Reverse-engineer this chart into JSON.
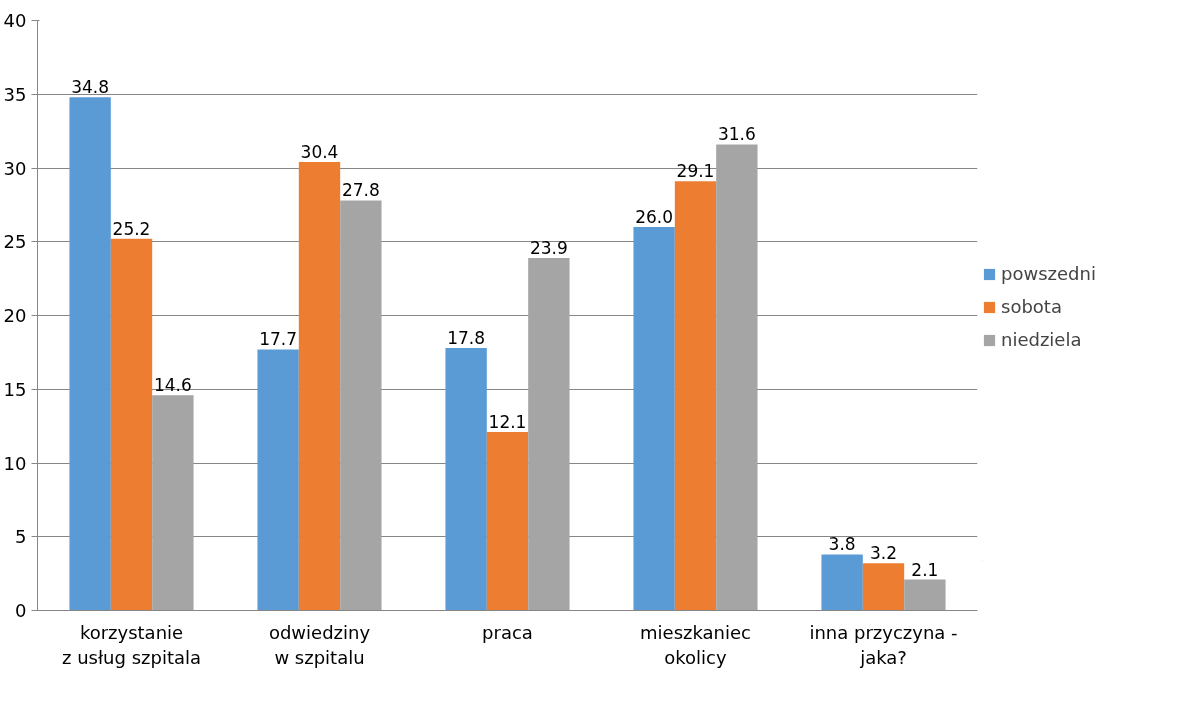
{
  "chart_data": {
    "type": "bar",
    "categories": [
      "korzystanie\nz usług szpitala",
      "odwiedziny\nw szpitalu",
      "praca",
      "mieszkaniec\nokolicy",
      "inna przyczyna -\njaka?"
    ],
    "series": [
      {
        "name": "powszedni",
        "color": "#5b9bd5",
        "values": [
          34.8,
          17.7,
          17.8,
          26.0,
          3.8
        ],
        "value_labels": [
          "34.8",
          "17.7",
          "17.8",
          "26.0",
          "3.8"
        ]
      },
      {
        "name": "sobota",
        "color": "#ed7d31",
        "values": [
          25.2,
          30.4,
          12.1,
          29.1,
          3.2
        ],
        "value_labels": [
          "25.2",
          "30.4",
          "12.1",
          "29.1",
          "3.2"
        ]
      },
      {
        "name": "niedziela",
        "color": "#a5a5a5",
        "values": [
          14.6,
          27.8,
          23.9,
          31.6,
          2.1
        ],
        "value_labels": [
          "14.6",
          "27.8",
          "23.9",
          "31.6",
          "2.1"
        ]
      }
    ],
    "ylim": [
      0,
      40
    ],
    "yticks": [
      0,
      5,
      10,
      15,
      20,
      25,
      30,
      35,
      40
    ],
    "grid": "y",
    "legend": "right"
  }
}
